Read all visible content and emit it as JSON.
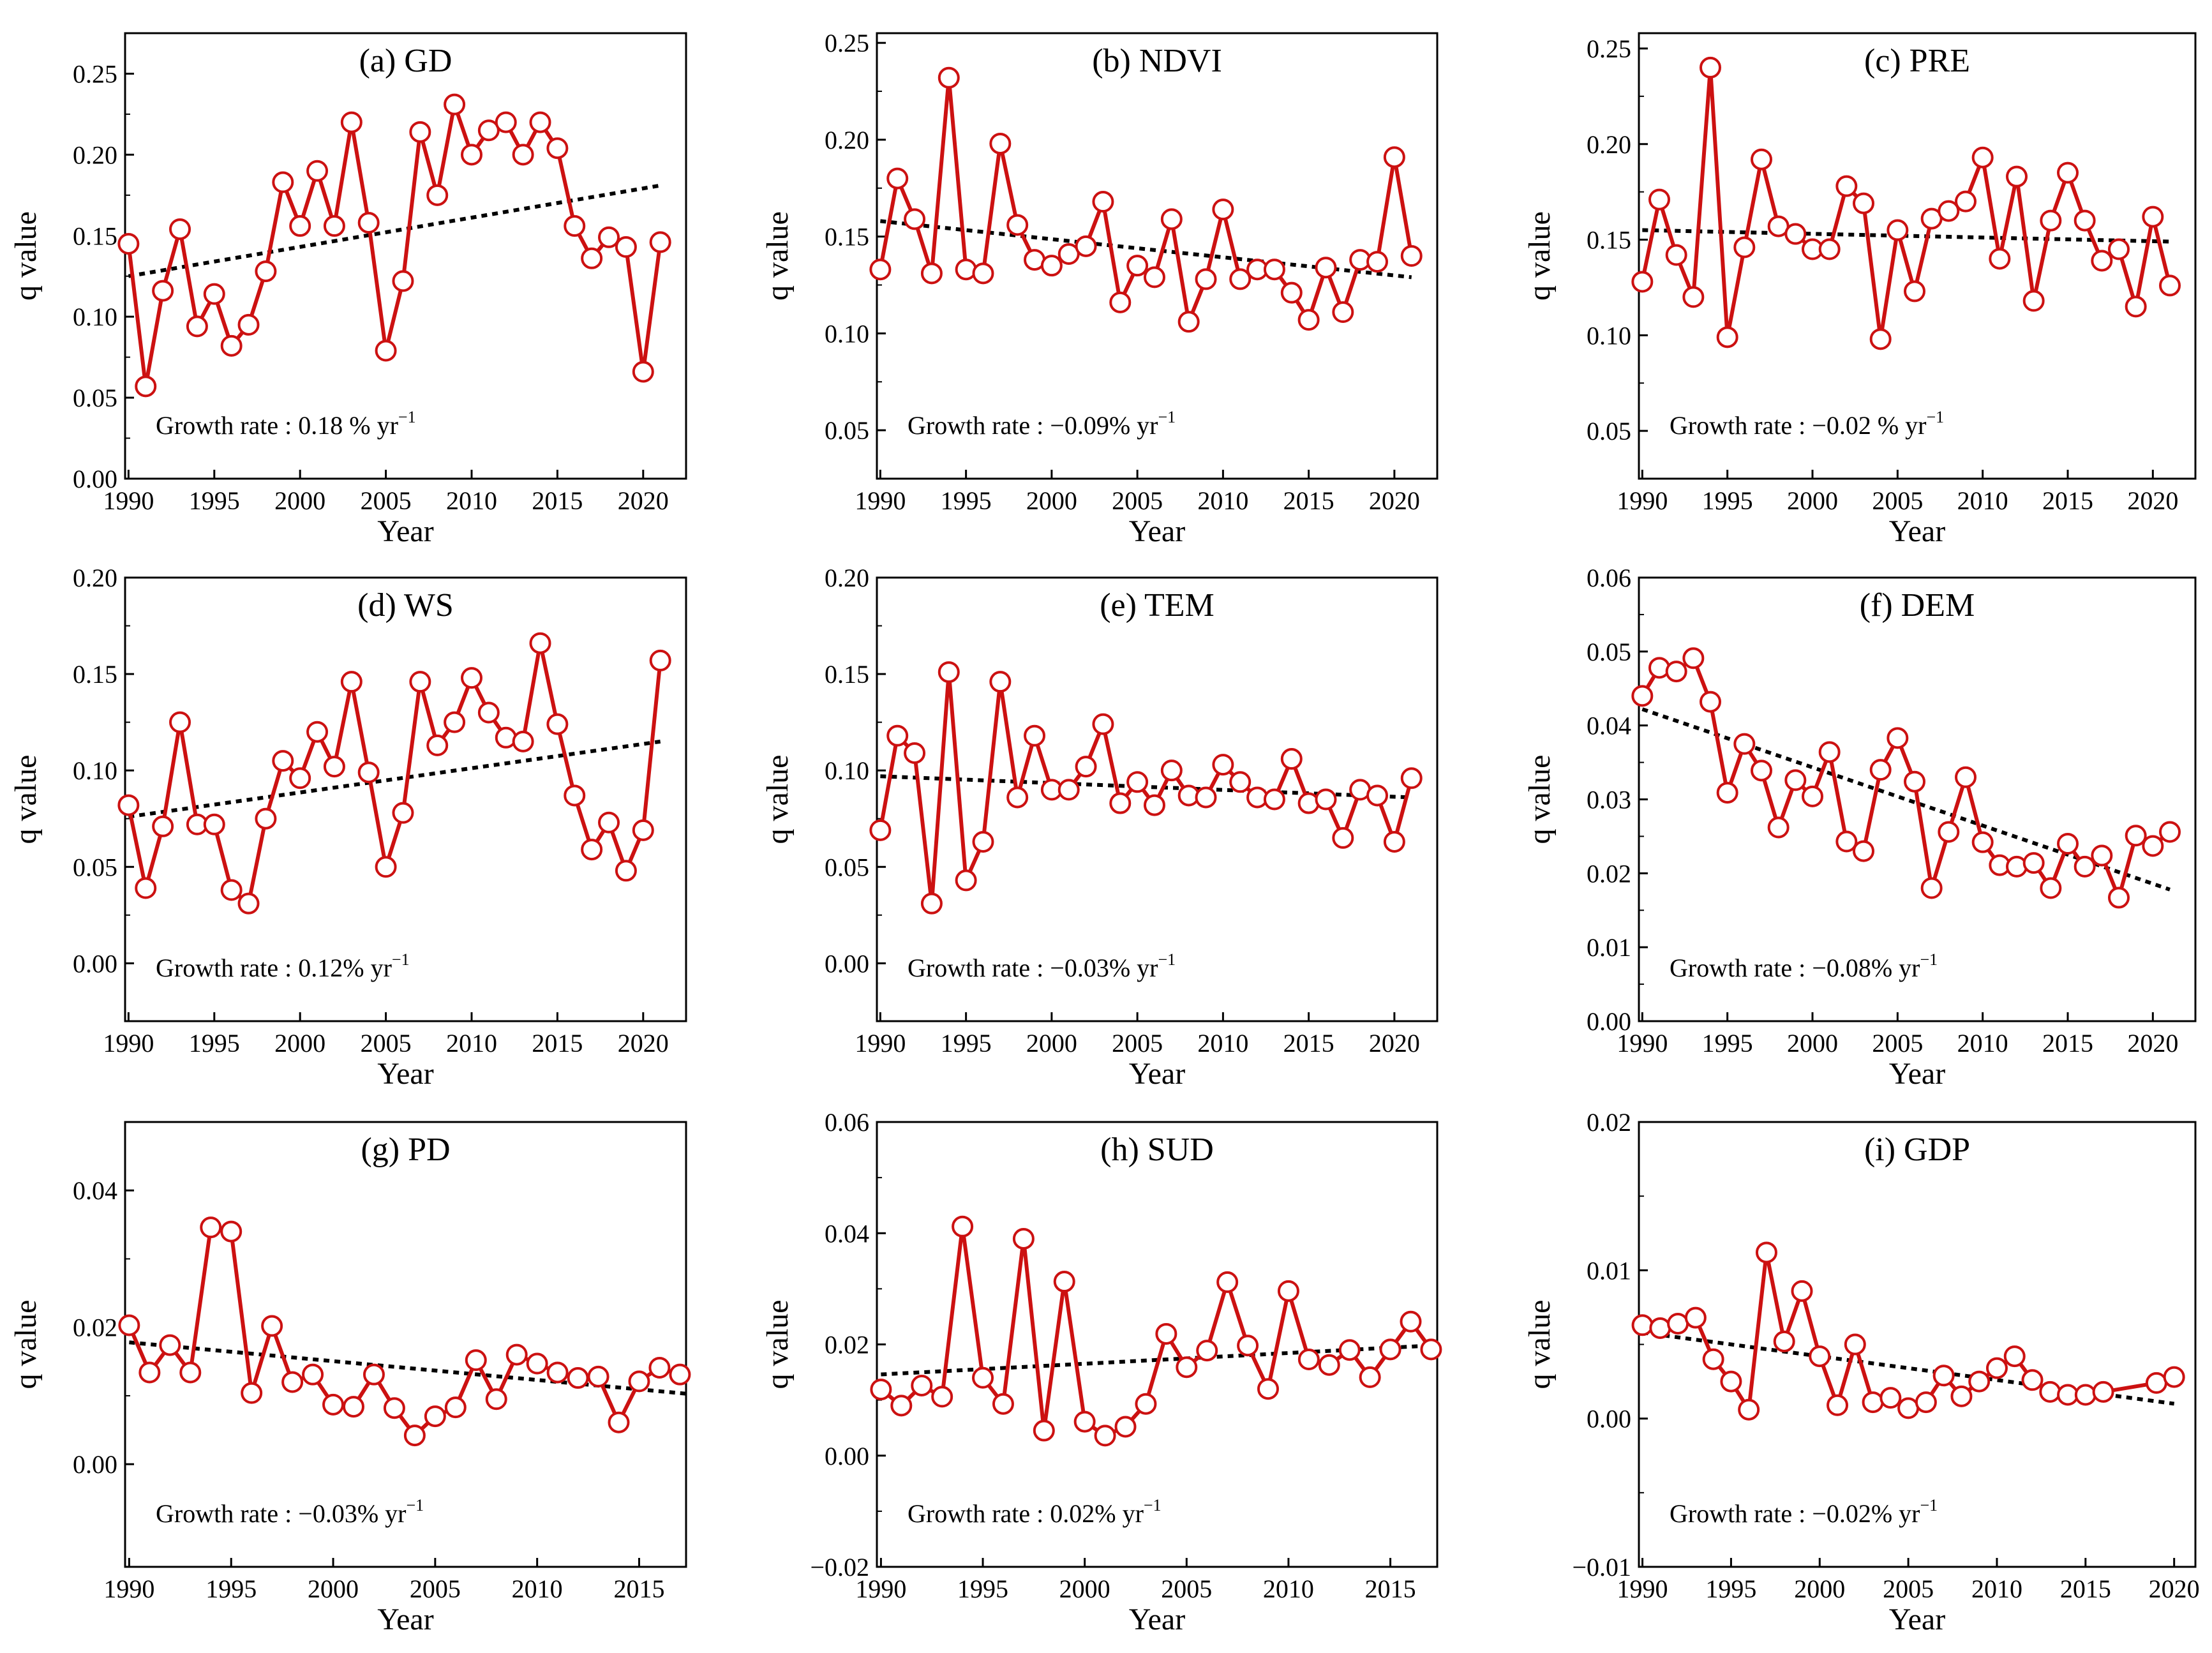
{
  "chart_data": [
    {
      "type": "line",
      "title": "(a) GD",
      "xlabel": "Year",
      "ylabel": "q value",
      "xlim": [
        1989.8,
        2022.5
      ],
      "ylim": [
        0.0,
        0.275
      ],
      "xticks": [
        1990,
        1995,
        2000,
        2005,
        2010,
        2015,
        2020
      ],
      "yticks": [
        0.0,
        0.05,
        0.1,
        0.15,
        0.2,
        0.25
      ],
      "ytick_labels": [
        "0.00",
        "0.05",
        "0.10",
        "0.15",
        "0.20",
        "0.25"
      ],
      "x": [
        1990,
        1991,
        1992,
        1993,
        1994,
        1995,
        1996,
        1997,
        1998,
        1999,
        2000,
        2001,
        2002,
        2003,
        2004,
        2005,
        2006,
        2007,
        2008,
        2009,
        2010,
        2011,
        2012,
        2013,
        2014,
        2015,
        2016,
        2017,
        2018,
        2019,
        2020,
        2021
      ],
      "values": [
        0.145,
        0.057,
        0.116,
        0.154,
        0.094,
        0.114,
        0.082,
        0.095,
        0.128,
        0.183,
        0.156,
        0.19,
        0.156,
        0.22,
        0.158,
        0.079,
        0.122,
        0.214,
        0.175,
        0.231,
        0.2,
        0.215,
        0.22,
        0.2,
        0.22,
        0.204,
        0.156,
        0.136,
        0.149,
        0.143,
        0.066,
        0.146
      ],
      "trend": {
        "x": [
          1990,
          2021
        ],
        "y": [
          0.125,
          0.181
        ]
      },
      "annotation": {
        "text": "Growth rate : 0.18 % yr",
        "sup": "−1"
      }
    },
    {
      "type": "line",
      "title": "(b) NDVI",
      "xlabel": "Year",
      "ylabel": "q value",
      "xlim": [
        1989.8,
        2022.5
      ],
      "ylim": [
        0.025,
        0.255
      ],
      "xticks": [
        1990,
        1995,
        2000,
        2005,
        2010,
        2015,
        2020
      ],
      "yticks": [
        0.05,
        0.1,
        0.15,
        0.2,
        0.25
      ],
      "ytick_labels": [
        "0.05",
        "0.10",
        "0.15",
        "0.20",
        "0.25"
      ],
      "x": [
        1990,
        1991,
        1992,
        1993,
        1994,
        1995,
        1996,
        1997,
        1998,
        1999,
        2000,
        2001,
        2002,
        2003,
        2004,
        2005,
        2006,
        2007,
        2008,
        2009,
        2010,
        2011,
        2012,
        2013,
        2014,
        2015,
        2016,
        2017,
        2018,
        2019,
        2020,
        2021
      ],
      "values": [
        0.133,
        0.18,
        0.159,
        0.131,
        0.232,
        0.133,
        0.131,
        0.198,
        0.156,
        0.138,
        0.135,
        0.141,
        0.145,
        0.168,
        0.116,
        0.135,
        0.129,
        0.159,
        0.106,
        0.128,
        0.164,
        0.128,
        0.133,
        0.133,
        0.121,
        0.107,
        0.134,
        0.111,
        0.138,
        0.137,
        0.191,
        0.14
      ],
      "trend": {
        "x": [
          1990,
          2021
        ],
        "y": [
          0.158,
          0.129
        ]
      },
      "annotation": {
        "text": "Growth rate : −0.09% yr",
        "sup": "−1"
      }
    },
    {
      "type": "line",
      "title": "(c) PRE",
      "xlabel": "Year",
      "ylabel": "q value",
      "xlim": [
        1989.8,
        2022.5
      ],
      "ylim": [
        0.025,
        0.258
      ],
      "xticks": [
        1990,
        1995,
        2000,
        2005,
        2010,
        2015,
        2020
      ],
      "yticks": [
        0.05,
        0.1,
        0.15,
        0.2,
        0.25
      ],
      "ytick_labels": [
        "0.05",
        "0.10",
        "0.15",
        "0.20",
        "0.25"
      ],
      "x": [
        1990,
        1991,
        1992,
        1993,
        1994,
        1995,
        1996,
        1997,
        1998,
        1999,
        2000,
        2001,
        2002,
        2003,
        2004,
        2005,
        2006,
        2007,
        2008,
        2009,
        2010,
        2011,
        2012,
        2013,
        2014,
        2015,
        2016,
        2017,
        2018,
        2019,
        2020,
        2021
      ],
      "values": [
        0.128,
        0.171,
        0.142,
        0.12,
        0.24,
        0.099,
        0.146,
        0.192,
        0.157,
        0.153,
        0.145,
        0.145,
        0.178,
        0.169,
        0.098,
        0.155,
        0.123,
        0.161,
        0.165,
        0.17,
        0.193,
        0.14,
        0.183,
        0.118,
        0.16,
        0.185,
        0.16,
        0.139,
        0.145,
        0.115,
        0.162,
        0.126
      ],
      "trend": {
        "x": [
          1990,
          2021
        ],
        "y": [
          0.155,
          0.149
        ]
      },
      "annotation": {
        "text": "Growth rate : −0.02 % yr",
        "sup": "−1"
      }
    },
    {
      "type": "line",
      "title": "(d) WS",
      "xlabel": "Year",
      "ylabel": "q value",
      "xlim": [
        1989.8,
        2022.5
      ],
      "ylim": [
        -0.03,
        0.2
      ],
      "xticks": [
        1990,
        1995,
        2000,
        2005,
        2010,
        2015,
        2020
      ],
      "yticks": [
        0.0,
        0.05,
        0.1,
        0.15,
        0.2
      ],
      "ytick_labels": [
        "0.00",
        "0.05",
        "0.10",
        "0.15",
        "0.20"
      ],
      "x": [
        1990,
        1991,
        1992,
        1993,
        1994,
        1995,
        1996,
        1997,
        1998,
        1999,
        2000,
        2001,
        2002,
        2003,
        2004,
        2005,
        2006,
        2007,
        2008,
        2009,
        2010,
        2011,
        2012,
        2013,
        2014,
        2015,
        2016,
        2017,
        2018,
        2019,
        2020,
        2021
      ],
      "values": [
        0.082,
        0.039,
        0.071,
        0.125,
        0.072,
        0.072,
        0.038,
        0.031,
        0.075,
        0.105,
        0.096,
        0.12,
        0.102,
        0.146,
        0.099,
        0.05,
        0.078,
        0.146,
        0.113,
        0.125,
        0.148,
        0.13,
        0.117,
        0.115,
        0.166,
        0.124,
        0.087,
        0.059,
        0.073,
        0.048,
        0.069,
        0.157
      ],
      "trend": {
        "x": [
          1990,
          2021
        ],
        "y": [
          0.076,
          0.115
        ]
      },
      "annotation": {
        "text": "Growth rate : 0.12% yr",
        "sup": "−1"
      }
    },
    {
      "type": "line",
      "title": "(e) TEM",
      "xlabel": "Year",
      "ylabel": "q value",
      "xlim": [
        1989.8,
        2022.5
      ],
      "ylim": [
        -0.03,
        0.2
      ],
      "xticks": [
        1990,
        1995,
        2000,
        2005,
        2010,
        2015,
        2020
      ],
      "yticks": [
        0.0,
        0.05,
        0.1,
        0.15,
        0.2
      ],
      "ytick_labels": [
        "0.00",
        "0.05",
        "0.10",
        "0.15",
        "0.20"
      ],
      "x": [
        1990,
        1991,
        1992,
        1993,
        1994,
        1995,
        1996,
        1997,
        1998,
        1999,
        2000,
        2001,
        2002,
        2003,
        2004,
        2005,
        2006,
        2007,
        2008,
        2009,
        2010,
        2011,
        2012,
        2013,
        2014,
        2015,
        2016,
        2017,
        2018,
        2019,
        2020,
        2021
      ],
      "values": [
        0.069,
        0.118,
        0.109,
        0.031,
        0.151,
        0.043,
        0.063,
        0.146,
        0.086,
        0.118,
        0.09,
        0.09,
        0.102,
        0.124,
        0.083,
        0.094,
        0.082,
        0.1,
        0.087,
        0.086,
        0.103,
        0.094,
        0.086,
        0.085,
        0.106,
        0.083,
        0.085,
        0.065,
        0.09,
        0.087,
        0.063,
        0.096
      ],
      "trend": {
        "x": [
          1990,
          2021
        ],
        "y": [
          0.097,
          0.086
        ]
      },
      "annotation": {
        "text": "Growth rate : −0.03% yr",
        "sup": "−1"
      }
    },
    {
      "type": "line",
      "title": "(f) DEM",
      "xlabel": "Year",
      "ylabel": "q value",
      "xlim": [
        1989.8,
        2022.5
      ],
      "ylim": [
        0.0,
        0.06
      ],
      "xticks": [
        1990,
        1995,
        2000,
        2005,
        2010,
        2015,
        2020
      ],
      "yticks": [
        0.0,
        0.01,
        0.02,
        0.03,
        0.04,
        0.05,
        0.06
      ],
      "ytick_labels": [
        "0.00",
        "0.01",
        "0.02",
        "0.03",
        "0.04",
        "0.05",
        "0.06"
      ],
      "x": [
        1990,
        1991,
        1992,
        1993,
        1994,
        1995,
        1996,
        1997,
        1998,
        1999,
        2000,
        2001,
        2002,
        2003,
        2004,
        2005,
        2006,
        2007,
        2008,
        2009,
        2010,
        2011,
        2012,
        2013,
        2014,
        2015,
        2016,
        2017,
        2018,
        2019,
        2020,
        2021
      ],
      "values": [
        0.044,
        0.0478,
        0.0473,
        0.0491,
        0.0432,
        0.0309,
        0.0375,
        0.0339,
        0.0262,
        0.0326,
        0.0304,
        0.0364,
        0.0243,
        0.023,
        0.034,
        0.0383,
        0.0324,
        0.018,
        0.0256,
        0.033,
        0.0242,
        0.0211,
        0.0209,
        0.0214,
        0.018,
        0.024,
        0.0209,
        0.0224,
        0.0167,
        0.0251,
        0.0237,
        0.0256
      ],
      "trend": {
        "x": [
          1990,
          2021
        ],
        "y": [
          0.0422,
          0.0178
        ]
      },
      "annotation": {
        "text": "Growth rate : −0.08% yr",
        "sup": "−1"
      }
    },
    {
      "type": "line",
      "title": "(g) PD",
      "xlabel": "Year",
      "ylabel": "q value",
      "xlim": [
        1989.8,
        2017.3
      ],
      "ylim": [
        -0.015,
        0.05
      ],
      "xticks": [
        1990,
        1995,
        2000,
        2005,
        2010,
        2015
      ],
      "yticks": [
        0.0,
        0.02,
        0.04
      ],
      "ytick_labels": [
        "0.00",
        "0.02",
        "0.04"
      ],
      "x": [
        1990,
        1991,
        1992,
        1993,
        1994,
        1995,
        1996,
        1997,
        1998,
        1999,
        2000,
        2001,
        2002,
        2003,
        2004,
        2005,
        2006,
        2007,
        2008,
        2009,
        2010,
        2011,
        2012,
        2013,
        2014,
        2015,
        2016,
        2017
      ],
      "values": [
        0.0203,
        0.0134,
        0.0174,
        0.0134,
        0.0346,
        0.034,
        0.0104,
        0.0202,
        0.012,
        0.0131,
        0.0087,
        0.0084,
        0.0131,
        0.0082,
        0.0042,
        0.007,
        0.0083,
        0.0152,
        0.0095,
        0.016,
        0.0147,
        0.0134,
        0.0126,
        0.0128,
        0.0061,
        0.0121,
        0.0141,
        0.0131
      ],
      "trend": {
        "x": [
          1990,
          2017.3
        ],
        "y": [
          0.0178,
          0.0103
        ]
      },
      "annotation": {
        "text": "Growth rate : −0.03% yr",
        "sup": "−1"
      }
    },
    {
      "type": "line",
      "title": "(h) SUD",
      "xlabel": "Year",
      "ylabel": "q value",
      "xlim": [
        1989.8,
        2017.3
      ],
      "ylim": [
        -0.02,
        0.06
      ],
      "xticks": [
        1990,
        1995,
        2000,
        2005,
        2010,
        2015
      ],
      "yticks": [
        -0.02,
        0.0,
        0.02,
        0.04,
        0.06
      ],
      "ytick_labels": [
        "−0.02",
        "0.00",
        "0.02",
        "0.04",
        "0.06"
      ],
      "x": [
        1990,
        1991,
        1992,
        1993,
        1994,
        1995,
        1996,
        1997,
        1998,
        1999,
        2000,
        2001,
        2002,
        2003,
        2004,
        2005,
        2006,
        2007,
        2008,
        2009,
        2010,
        2011,
        2012,
        2013,
        2014,
        2015,
        2016,
        2017
      ],
      "values": [
        0.0119,
        0.009,
        0.0126,
        0.0106,
        0.0412,
        0.014,
        0.0093,
        0.039,
        0.0045,
        0.0313,
        0.0061,
        0.0036,
        0.0052,
        0.0093,
        0.0219,
        0.0159,
        0.0189,
        0.0312,
        0.0198,
        0.012,
        0.0296,
        0.0173,
        0.0163,
        0.019,
        0.0141,
        0.0191,
        0.0241,
        0.0191
      ],
      "trend": {
        "x": [
          1990,
          2017
        ],
        "y": [
          0.0146,
          0.0198
        ]
      },
      "annotation": {
        "text": "Growth rate : 0.02% yr",
        "sup": "−1"
      }
    },
    {
      "type": "line",
      "title": "(i) GDP",
      "xlabel": "Year",
      "ylabel": "q value",
      "xlim": [
        1989.8,
        2021.2
      ],
      "ylim": [
        -0.01,
        0.02
      ],
      "xticks": [
        1990,
        1995,
        2000,
        2005,
        2010,
        2015,
        2020
      ],
      "yticks": [
        -0.01,
        0.0,
        0.01,
        0.02
      ],
      "ytick_labels": [
        "−0.01",
        "0.00",
        "0.01",
        "0.02"
      ],
      "x": [
        1990,
        1991,
        1992,
        1993,
        1994,
        1995,
        1996,
        1997,
        1998,
        1999,
        2000,
        2001,
        2002,
        2003,
        2004,
        2005,
        2006,
        2007,
        2008,
        2009,
        2010,
        2011,
        2012,
        2013,
        2014,
        2015,
        2016,
        2019,
        2020
      ],
      "values": [
        0.0063,
        0.0061,
        0.0064,
        0.0068,
        0.004,
        0.0025,
        0.0006,
        0.0112,
        0.0052,
        0.0086,
        0.0042,
        0.0009,
        0.005,
        0.0011,
        0.0014,
        0.0007,
        0.0011,
        0.0029,
        0.0015,
        0.0025,
        0.0034,
        0.0042,
        0.0026,
        0.0018,
        0.0016,
        0.0016,
        0.0018,
        0.0024,
        0.0028
      ],
      "trend": {
        "x": [
          1990,
          2020
        ],
        "y": [
          0.0058,
          0.001
        ]
      },
      "annotation": {
        "text": "Growth rate : −0.02% yr",
        "sup": "−1"
      }
    }
  ],
  "colors": {
    "series_line": "#cc1111",
    "marker_fill": "#ffffff",
    "trend_line": "#000000",
    "axis": "#000000"
  }
}
